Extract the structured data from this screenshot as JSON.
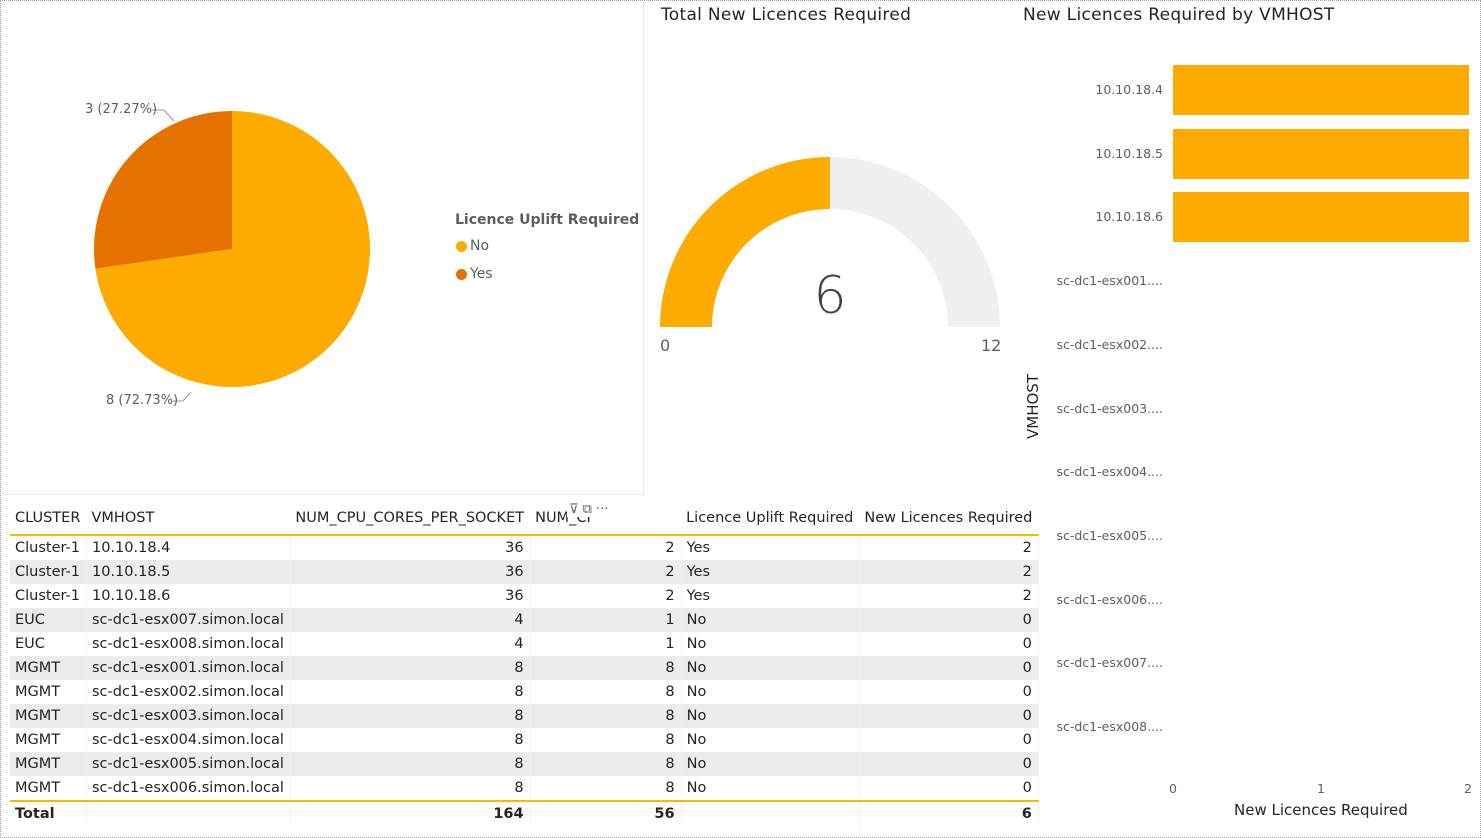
{
  "pie": {
    "legend_title": "Licence Uplift Required",
    "legend": [
      {
        "label": "No",
        "color": "#feab00"
      },
      {
        "label": "Yes",
        "color": "#e57200"
      }
    ],
    "labels": {
      "yes": "3 (27.27%)",
      "no": "8 (72.73%)"
    }
  },
  "gauge": {
    "title": "Total New Licences Required",
    "value": "6",
    "min": "0",
    "max": "12",
    "fill_fraction": 0.5
  },
  "barchart": {
    "title": "New Licences Required by VMHOST",
    "ylabel": "VMHOST",
    "xlabel": "New Licences Required",
    "ticks": [
      "0",
      "1",
      "2"
    ]
  },
  "table": {
    "headers": [
      "CLUSTER",
      "VMHOST",
      "NUM_CPU_CORES_PER_SOCKET",
      "NUM_CI",
      "Licence Uplift Required",
      "New Licences Required"
    ],
    "header_icons": "⊽ ⧉ ···",
    "rows": [
      {
        "cluster": "Cluster-1",
        "vmhost": "10.10.18.4",
        "cores": "36",
        "sockets": "2",
        "uplift": "Yes",
        "new": "2"
      },
      {
        "cluster": "Cluster-1",
        "vmhost": "10.10.18.5",
        "cores": "36",
        "sockets": "2",
        "uplift": "Yes",
        "new": "2"
      },
      {
        "cluster": "Cluster-1",
        "vmhost": "10.10.18.6",
        "cores": "36",
        "sockets": "2",
        "uplift": "Yes",
        "new": "2"
      },
      {
        "cluster": "EUC",
        "vmhost": "sc-dc1-esx007.simon.local",
        "cores": "4",
        "sockets": "1",
        "uplift": "No",
        "new": "0"
      },
      {
        "cluster": "EUC",
        "vmhost": "sc-dc1-esx008.simon.local",
        "cores": "4",
        "sockets": "1",
        "uplift": "No",
        "new": "0"
      },
      {
        "cluster": "MGMT",
        "vmhost": "sc-dc1-esx001.simon.local",
        "cores": "8",
        "sockets": "8",
        "uplift": "No",
        "new": "0"
      },
      {
        "cluster": "MGMT",
        "vmhost": "sc-dc1-esx002.simon.local",
        "cores": "8",
        "sockets": "8",
        "uplift": "No",
        "new": "0"
      },
      {
        "cluster": "MGMT",
        "vmhost": "sc-dc1-esx003.simon.local",
        "cores": "8",
        "sockets": "8",
        "uplift": "No",
        "new": "0"
      },
      {
        "cluster": "MGMT",
        "vmhost": "sc-dc1-esx004.simon.local",
        "cores": "8",
        "sockets": "8",
        "uplift": "No",
        "new": "0"
      },
      {
        "cluster": "MGMT",
        "vmhost": "sc-dc1-esx005.simon.local",
        "cores": "8",
        "sockets": "8",
        "uplift": "No",
        "new": "0"
      },
      {
        "cluster": "MGMT",
        "vmhost": "sc-dc1-esx006.simon.local",
        "cores": "8",
        "sockets": "8",
        "uplift": "No",
        "new": "0"
      }
    ],
    "total": {
      "label": "Total",
      "cores": "164",
      "sockets": "56",
      "new": "6"
    }
  },
  "chart_data": [
    {
      "type": "pie",
      "categories": [
        "No",
        "Yes"
      ],
      "values": [
        8,
        3
      ],
      "legend_title": "Licence Uplift Required",
      "colors": [
        "#feab00",
        "#e57200"
      ]
    },
    {
      "type": "bar",
      "orientation": "horizontal",
      "title": "New Licences Required by VMHOST",
      "categories": [
        "10.10.18.4",
        "10.10.18.5",
        "10.10.18.6",
        "sc-dc1-esx001....",
        "sc-dc1-esx002....",
        "sc-dc1-esx003....",
        "sc-dc1-esx004....",
        "sc-dc1-esx005....",
        "sc-dc1-esx006....",
        "sc-dc1-esx007....",
        "sc-dc1-esx008...."
      ],
      "values": [
        2,
        2,
        2,
        0,
        0,
        0,
        0,
        0,
        0,
        0,
        0
      ],
      "xlabel": "New Licences Required",
      "ylabel": "VMHOST",
      "xlim": [
        0,
        2
      ],
      "color": "#feab00"
    }
  ]
}
